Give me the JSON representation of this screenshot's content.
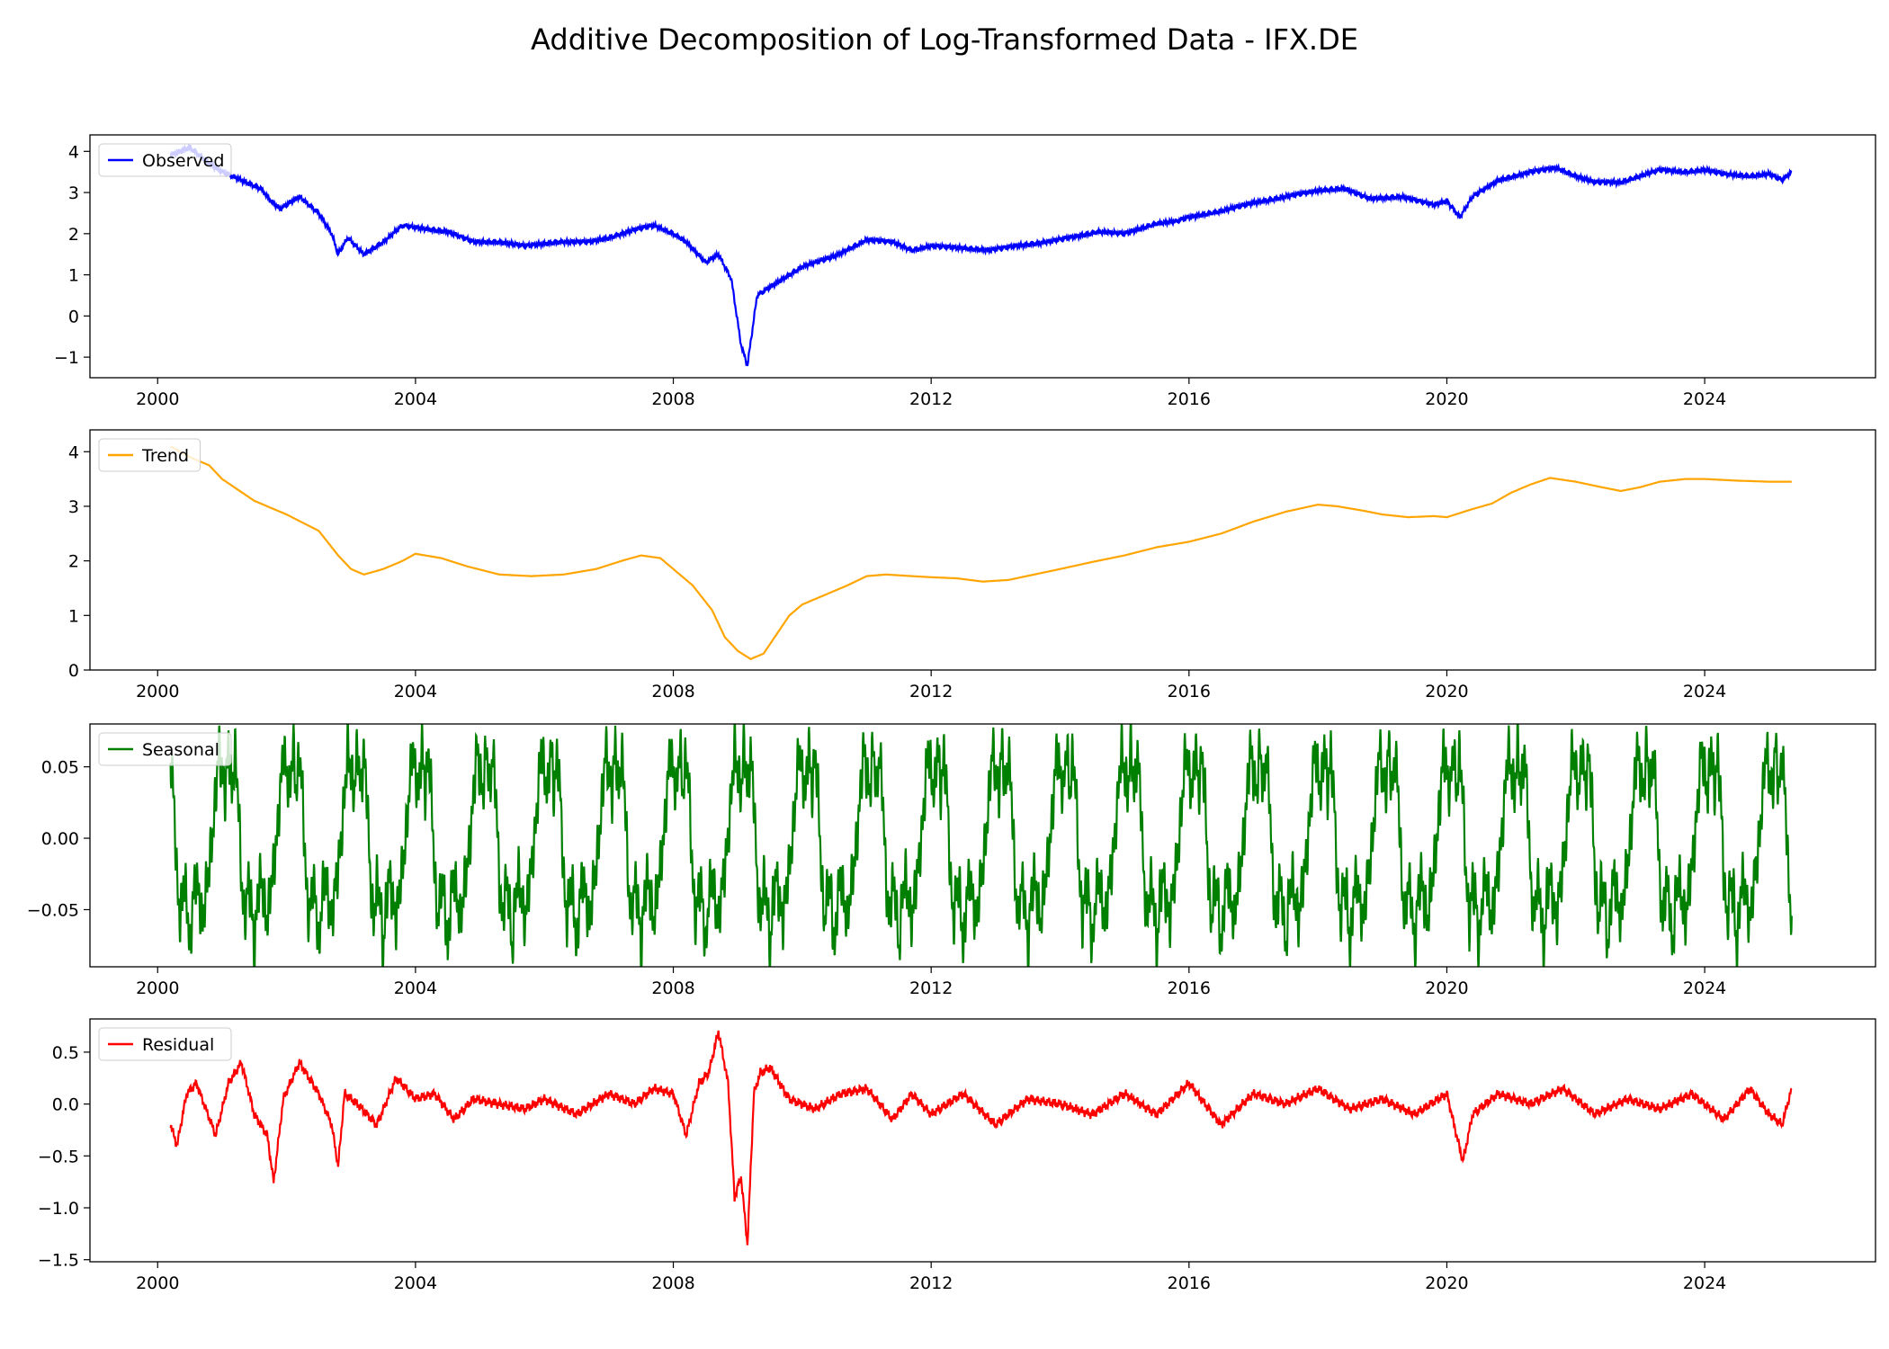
{
  "figure": {
    "title": "Additive Decomposition of Log-Transformed Data - IFX.DE"
  },
  "chart_data": [
    {
      "type": "line",
      "panel": "observed",
      "series": [
        {
          "name": "Observed",
          "color": "#0000ff",
          "x": [
            2000.2,
            2000.5,
            2000.8,
            2001.0,
            2001.3,
            2001.6,
            2001.75,
            2001.9,
            2002.2,
            2002.5,
            2002.7,
            2002.8,
            2002.95,
            2003.2,
            2003.5,
            2003.8,
            2004.0,
            2004.5,
            2004.9,
            2005.3,
            2005.7,
            2006.2,
            2006.7,
            2007.0,
            2007.4,
            2007.7,
            2008.0,
            2008.2,
            2008.5,
            2008.7,
            2008.9,
            2009.05,
            2009.15,
            2009.3,
            2009.6,
            2010.0,
            2010.5,
            2011.0,
            2011.4,
            2011.7,
            2012.0,
            2012.5,
            2012.9,
            2013.3,
            2013.8,
            2014.3,
            2014.6,
            2015.0,
            2015.5,
            2015.8,
            2016.0,
            2016.5,
            2017.0,
            2017.5,
            2018.0,
            2018.4,
            2018.8,
            2019.3,
            2019.8,
            2020.0,
            2020.2,
            2020.4,
            2020.8,
            2021.3,
            2021.7,
            2022.0,
            2022.3,
            2022.7,
            2023.0,
            2023.3,
            2023.7,
            2024.0,
            2024.3,
            2024.7,
            2025.0,
            2025.2,
            2025.35
          ],
          "y": [
            3.9,
            4.1,
            3.7,
            3.5,
            3.3,
            3.1,
            2.8,
            2.6,
            2.9,
            2.5,
            2.0,
            1.5,
            1.9,
            1.5,
            1.8,
            2.2,
            2.15,
            2.05,
            1.8,
            1.8,
            1.7,
            1.8,
            1.8,
            1.9,
            2.1,
            2.2,
            2.0,
            1.8,
            1.3,
            1.5,
            0.9,
            -0.7,
            -1.2,
            0.5,
            0.8,
            1.2,
            1.45,
            1.85,
            1.8,
            1.6,
            1.7,
            1.65,
            1.6,
            1.7,
            1.8,
            1.95,
            2.05,
            2.0,
            2.25,
            2.3,
            2.4,
            2.55,
            2.75,
            2.9,
            3.05,
            3.1,
            2.85,
            2.9,
            2.7,
            2.8,
            2.4,
            2.9,
            3.3,
            3.5,
            3.6,
            3.4,
            3.25,
            3.25,
            3.4,
            3.55,
            3.5,
            3.55,
            3.45,
            3.4,
            3.45,
            3.3,
            3.5
          ]
        }
      ],
      "ylim": [
        -1.5,
        4.4
      ],
      "yticks": [
        -1,
        0,
        1,
        2,
        3,
        4
      ],
      "xticks": [
        2000,
        2004,
        2008,
        2012,
        2016,
        2020,
        2024
      ],
      "xlim": [
        1998.95,
        2026.65
      ],
      "legend": "upper left"
    },
    {
      "type": "line",
      "panel": "trend",
      "series": [
        {
          "name": "Trend",
          "color": "#ffa500",
          "x": [
            2000.2,
            2000.5,
            2000.8,
            2001.0,
            2001.5,
            2002.0,
            2002.5,
            2002.8,
            2003.0,
            2003.2,
            2003.5,
            2003.8,
            2004.0,
            2004.4,
            2004.8,
            2005.3,
            2005.8,
            2006.3,
            2006.8,
            2007.2,
            2007.5,
            2007.8,
            2008.0,
            2008.3,
            2008.6,
            2008.8,
            2009.0,
            2009.2,
            2009.4,
            2009.6,
            2009.8,
            2010.0,
            2010.3,
            2010.7,
            2011.0,
            2011.3,
            2011.7,
            2012.0,
            2012.4,
            2012.8,
            2013.2,
            2013.6,
            2014.0,
            2014.5,
            2015.0,
            2015.5,
            2016.0,
            2016.5,
            2017.0,
            2017.5,
            2018.0,
            2018.3,
            2018.7,
            2019.0,
            2019.4,
            2019.8,
            2020.0,
            2020.4,
            2020.7,
            2021.0,
            2021.3,
            2021.6,
            2022.0,
            2022.4,
            2022.7,
            2023.0,
            2023.3,
            2023.7,
            2024.0,
            2024.5,
            2025.0,
            2025.35
          ],
          "y": [
            4.1,
            3.9,
            3.75,
            3.5,
            3.1,
            2.85,
            2.55,
            2.1,
            1.85,
            1.75,
            1.85,
            2.0,
            2.13,
            2.05,
            1.9,
            1.75,
            1.72,
            1.75,
            1.85,
            2.0,
            2.1,
            2.05,
            1.85,
            1.55,
            1.1,
            0.6,
            0.35,
            0.2,
            0.3,
            0.65,
            1.0,
            1.2,
            1.35,
            1.55,
            1.72,
            1.75,
            1.72,
            1.7,
            1.68,
            1.62,
            1.65,
            1.75,
            1.85,
            1.98,
            2.1,
            2.25,
            2.35,
            2.5,
            2.72,
            2.9,
            3.03,
            3.0,
            2.92,
            2.85,
            2.8,
            2.82,
            2.8,
            2.95,
            3.05,
            3.25,
            3.4,
            3.52,
            3.45,
            3.35,
            3.28,
            3.35,
            3.45,
            3.5,
            3.5,
            3.47,
            3.45,
            3.45
          ]
        }
      ],
      "ylim": [
        0,
        4.4
      ],
      "yticks": [
        0,
        1,
        2,
        3,
        4
      ],
      "xticks": [
        2000,
        2004,
        2008,
        2012,
        2016,
        2020,
        2024
      ],
      "xlim": [
        1998.95,
        2026.65
      ],
      "legend": "upper left"
    },
    {
      "type": "line",
      "panel": "seasonal",
      "series": [
        {
          "name": "Seasonal",
          "color": "#008000",
          "period": 1.0,
          "start": 2000.2,
          "end": 2025.35,
          "phase_x": [
            0.0,
            0.05,
            0.1,
            0.15,
            0.2,
            0.25,
            0.3,
            0.35,
            0.4,
            0.45,
            0.5,
            0.55,
            0.6,
            0.65,
            0.7,
            0.75,
            0.8,
            0.85,
            0.9,
            0.95,
            1.0
          ],
          "phase_y": [
            0.06,
            0.03,
            -0.03,
            -0.06,
            -0.03,
            -0.04,
            -0.082,
            -0.04,
            -0.025,
            -0.045,
            -0.06,
            -0.035,
            -0.02,
            0.0,
            0.03,
            0.065,
            0.045,
            0.03,
            0.068,
            0.03,
            0.06
          ]
        }
      ],
      "ylim": [
        -0.09,
        0.08
      ],
      "yticks": [
        -0.05,
        0.0,
        0.05
      ],
      "ytick_labels": [
        "−0.05",
        "0.00",
        "0.05"
      ],
      "xticks": [
        2000,
        2004,
        2008,
        2012,
        2016,
        2020,
        2024
      ],
      "xlim": [
        1998.95,
        2026.65
      ],
      "legend": "upper left"
    },
    {
      "type": "line",
      "panel": "residual",
      "series": [
        {
          "name": "Residual",
          "color": "#ff0000",
          "x": [
            2000.2,
            2000.3,
            2000.45,
            2000.6,
            2000.9,
            2001.1,
            2001.3,
            2001.5,
            2001.7,
            2001.8,
            2001.95,
            2002.2,
            2002.5,
            2002.7,
            2002.8,
            2002.9,
            2003.1,
            2003.4,
            2003.7,
            2004.0,
            2004.3,
            2004.6,
            2004.9,
            2005.3,
            2005.7,
            2006.0,
            2006.5,
            2007.0,
            2007.4,
            2007.7,
            2008.0,
            2008.2,
            2008.4,
            2008.55,
            2008.7,
            2008.85,
            2008.95,
            2009.05,
            2009.15,
            2009.25,
            2009.35,
            2009.5,
            2009.8,
            2010.2,
            2010.6,
            2011.0,
            2011.4,
            2011.7,
            2012.0,
            2012.5,
            2013.0,
            2013.5,
            2014.0,
            2014.5,
            2015.0,
            2015.5,
            2016.0,
            2016.5,
            2017.0,
            2017.5,
            2018.0,
            2018.5,
            2019.0,
            2019.5,
            2020.0,
            2020.15,
            2020.25,
            2020.4,
            2020.8,
            2021.3,
            2021.8,
            2022.3,
            2022.8,
            2023.3,
            2023.8,
            2024.3,
            2024.7,
            2025.0,
            2025.2,
            2025.35
          ],
          "y": [
            -0.2,
            -0.4,
            0.1,
            0.2,
            -0.3,
            0.2,
            0.4,
            -0.1,
            -0.3,
            -0.75,
            0.05,
            0.4,
            0.1,
            -0.2,
            -0.6,
            0.1,
            0.0,
            -0.2,
            0.25,
            0.05,
            0.1,
            -0.15,
            0.05,
            0.0,
            -0.05,
            0.05,
            -0.1,
            0.1,
            0.0,
            0.15,
            0.1,
            -0.3,
            0.2,
            0.3,
            0.7,
            0.2,
            -0.9,
            -0.7,
            -1.35,
            0.1,
            0.3,
            0.35,
            0.05,
            -0.05,
            0.1,
            0.15,
            -0.15,
            0.1,
            -0.1,
            0.1,
            -0.2,
            0.05,
            0.0,
            -0.1,
            0.1,
            -0.1,
            0.2,
            -0.2,
            0.1,
            0.0,
            0.15,
            -0.05,
            0.05,
            -0.1,
            0.1,
            -0.3,
            -0.55,
            -0.1,
            0.1,
            0.0,
            0.15,
            -0.1,
            0.05,
            -0.05,
            0.1,
            -0.15,
            0.15,
            -0.1,
            -0.2,
            0.15
          ]
        }
      ],
      "ylim": [
        -1.52,
        0.82
      ],
      "yticks": [
        -1.5,
        -1.0,
        -0.5,
        0.0,
        0.5
      ],
      "ytick_labels": [
        "−1.5",
        "−1.0",
        "−0.5",
        "0.0",
        "0.5"
      ],
      "xticks": [
        2000,
        2004,
        2008,
        2012,
        2016,
        2020,
        2024
      ],
      "xlim": [
        1998.95,
        2026.65
      ],
      "legend": "upper left"
    }
  ]
}
